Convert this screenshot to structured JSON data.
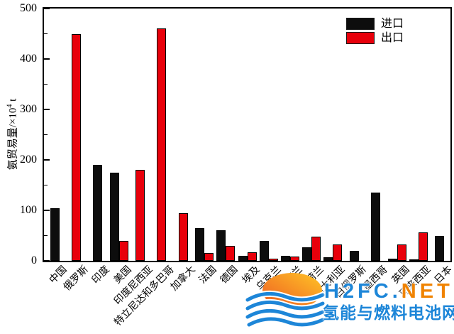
{
  "chart_data": {
    "type": "bar",
    "title": "",
    "ylabel": "氨贸易量/×10⁴ t",
    "ylabel_parts": {
      "base": "氨贸易量/×10",
      "sup": "4",
      "unit": " t"
    },
    "xlabel": "",
    "ylim": [
      0,
      500
    ],
    "yticks": [
      0,
      100,
      200,
      300,
      400,
      500
    ],
    "y_minor_step": 50,
    "grid": false,
    "legend_position": "top-right-inside",
    "xlabel_rotation_deg": 45,
    "categories": [
      "中国",
      "俄罗斯",
      "印度",
      "美国",
      "印度尼西亚",
      "特立尼达和多巴哥",
      "加拿大",
      "法国",
      "德国",
      "埃及",
      "乌克兰",
      "波兰",
      "荷兰",
      "澳大利亚",
      "白俄罗斯",
      "墨西哥",
      "英国",
      "马来西亚",
      "日本"
    ],
    "series": [
      {
        "name": "进口",
        "color": "#0d0d0d",
        "values": [
          105,
          null,
          190,
          175,
          null,
          null,
          null,
          65,
          60,
          10,
          40,
          10,
          27,
          7,
          20,
          135,
          5,
          3,
          50
        ]
      },
      {
        "name": "出口",
        "color": "#e8000b",
        "values": [
          null,
          450,
          null,
          40,
          180,
          460,
          95,
          15,
          30,
          17,
          5,
          8,
          48,
          32,
          null,
          null,
          32,
          57,
          null
        ]
      }
    ]
  },
  "watermark": {
    "en_blue": "H2FC",
    "en_dot": ".",
    "en_orange": "NET",
    "cn": "氢能与燃料电池网",
    "blue": "#1d86d8",
    "orange": "#f08300",
    "wave_color": "#1d86d8",
    "sun_gradient": [
      "#ee5a23",
      "#ffc526"
    ]
  }
}
